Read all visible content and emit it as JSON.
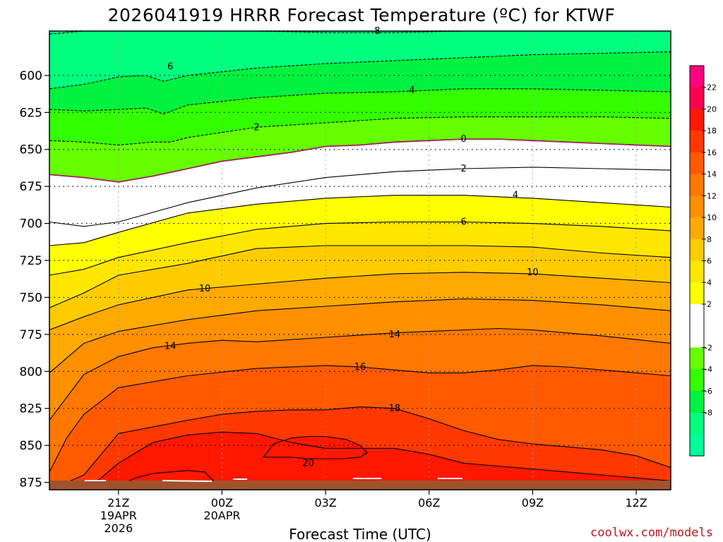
{
  "chart_data": {
    "type": "heatmap",
    "title": "2026041919 HRRR Forecast Temperature (ºC) for KTWF",
    "xlabel": "Forecast Time (UTC)",
    "ylabel": "",
    "credit": "coolwx.com/models",
    "y_axis": {
      "type": "pressure (mb)",
      "inverted": true,
      "range": [
        570,
        880
      ],
      "ticks": [
        "600",
        "625",
        "650",
        "675",
        "700",
        "725",
        "750",
        "775",
        "800",
        "825",
        "850",
        "875"
      ]
    },
    "x_axis": {
      "range_hours": [
        -2,
        16
      ],
      "range_label": "19 UTC 19 Apr 2026 to 13 UTC 20 Apr 2026",
      "ticks": [
        {
          "label": "21Z",
          "sub": [
            "19APR",
            "2026"
          ]
        },
        {
          "label": "00Z",
          "sub": [
            "20APR"
          ]
        },
        {
          "label": "03Z",
          "sub": []
        },
        {
          "label": "06Z",
          "sub": []
        },
        {
          "label": "09Z",
          "sub": []
        },
        {
          "label": "12Z",
          "sub": []
        }
      ]
    },
    "colorbar": {
      "levels": [
        -10,
        -8,
        -6,
        -4,
        -2,
        0,
        2,
        4,
        6,
        8,
        10,
        12,
        14,
        16,
        18,
        20,
        22,
        24
      ],
      "labels": [
        "22",
        "20",
        "18",
        "16",
        "14",
        "12",
        "10",
        "8",
        "6",
        "4",
        "2",
        "-2",
        "-4",
        "-6",
        "-8"
      ],
      "colors": [
        "#00ff99",
        "#00ff7f",
        "#00f240",
        "#33ff00",
        "#66ff00",
        "#ffffff",
        "#ffffff",
        "#ffff00",
        "#ffe600",
        "#ffcc00",
        "#ffaa00",
        "#ff9000",
        "#ff7800",
        "#ff5a00",
        "#ff3800",
        "#ff1800",
        "#ff004f",
        "#ff0080"
      ]
    },
    "contour_labels": [
      "8",
      "6",
      "4",
      "2",
      "0",
      "2",
      "4",
      "6",
      "10",
      "10",
      "14",
      "14",
      "16",
      "18",
      "20"
    ],
    "series": [
      {
        "name": "-8",
        "x": [
          -2,
          -1,
          0,
          2,
          4,
          6,
          8,
          10,
          12,
          14,
          16
        ],
        "p": [
          572,
          570,
          568,
          568,
          570,
          571,
          571,
          570,
          568,
          566,
          565
        ]
      },
      {
        "name": "-6",
        "x": [
          -2,
          -1,
          0,
          0.8,
          1.3,
          2,
          4,
          6,
          8,
          10,
          12,
          14,
          16
        ],
        "p": [
          609,
          606,
          601,
          600,
          604,
          600,
          595,
          592,
          590,
          588,
          586,
          585,
          584
        ]
      },
      {
        "name": "-4",
        "x": [
          -2,
          -1,
          0,
          0.8,
          1.3,
          2,
          4,
          6,
          8,
          10,
          12,
          14,
          16
        ],
        "p": [
          623,
          624,
          623,
          622,
          626,
          620,
          615,
          612,
          611,
          609,
          609,
          610,
          611
        ]
      },
      {
        "name": "-2",
        "x": [
          -2,
          -1,
          0,
          1,
          1.5,
          2,
          4,
          6,
          8,
          10,
          12,
          14,
          16
        ],
        "p": [
          644,
          645,
          647,
          645,
          645,
          642,
          635,
          632,
          629,
          628,
          628,
          628,
          629
        ]
      },
      {
        "name": "0",
        "x": [
          -2,
          -1,
          0,
          1,
          2,
          3,
          4,
          5,
          6,
          7,
          8,
          9,
          10,
          11,
          12,
          13,
          14,
          16
        ],
        "p": [
          667,
          669,
          672,
          668,
          663,
          658,
          655,
          652,
          648,
          647,
          645,
          644,
          643,
          643,
          644,
          645,
          646,
          648
        ]
      },
      {
        "name": "2",
        "x": [
          -2,
          -1,
          0,
          2,
          4,
          6,
          8,
          10,
          12,
          14,
          16
        ],
        "p": [
          699,
          702,
          699,
          686,
          676,
          669,
          665,
          663,
          662,
          663,
          664
        ]
      },
      {
        "name": "4",
        "x": [
          -2,
          -1,
          0,
          2,
          4,
          6,
          8,
          10,
          12,
          14,
          16
        ],
        "p": [
          715,
          713,
          706,
          693,
          687,
          683,
          681,
          681,
          683,
          686,
          689
        ]
      },
      {
        "name": "6",
        "x": [
          -2,
          -1,
          0,
          2,
          4,
          6,
          8,
          10,
          12,
          14,
          16
        ],
        "p": [
          735,
          731,
          723,
          713,
          704,
          700,
          699,
          699,
          700,
          702,
          705
        ]
      },
      {
        "name": "8",
        "x": [
          -2,
          -1,
          0,
          2,
          4,
          6,
          8,
          10,
          12,
          14,
          16
        ],
        "p": [
          757,
          747,
          735,
          727,
          717,
          715,
          715,
          715,
          716,
          720,
          723
        ]
      },
      {
        "name": "10",
        "x": [
          -2,
          -1,
          0,
          2,
          4,
          6,
          8,
          10,
          12,
          14,
          16
        ],
        "p": [
          772,
          763,
          755,
          745,
          741,
          737,
          734,
          733,
          734,
          737,
          740
        ]
      },
      {
        "name": "12",
        "x": [
          -2,
          -1,
          0,
          2,
          4,
          6,
          8,
          10,
          12,
          14,
          16
        ],
        "p": [
          801,
          781,
          773,
          765,
          759,
          756,
          753,
          751,
          752,
          755,
          759
        ]
      },
      {
        "name": "14",
        "x": [
          -2,
          -1,
          0,
          1,
          2,
          3,
          4,
          6,
          8,
          9,
          10,
          11,
          12,
          14,
          16
        ],
        "p": [
          833,
          802,
          790,
          784,
          781,
          779,
          780,
          777,
          774,
          773,
          772,
          771,
          772,
          776,
          781
        ]
      },
      {
        "name": "16",
        "x": [
          -2,
          -1.5,
          -1,
          0,
          2,
          4,
          6,
          7,
          8,
          9,
          10,
          11,
          12,
          13,
          14,
          16
        ],
        "p": [
          868,
          845,
          829,
          811,
          803,
          798,
          796,
          797,
          799,
          801,
          801,
          799,
          796,
          797,
          799,
          803
        ]
      },
      {
        "name": "18",
        "x": [
          -2,
          -1.5,
          -1,
          -0.5,
          0,
          2,
          3,
          4,
          5,
          6,
          7,
          8,
          9,
          10,
          11,
          12,
          13,
          14,
          15,
          16
        ],
        "p": [
          880,
          875,
          870,
          856,
          842,
          833,
          829,
          827,
          826,
          826,
          824,
          825,
          832,
          840,
          846,
          849,
          851,
          853,
          857,
          865
        ]
      },
      {
        "name": "20-west",
        "x": [
          -2,
          -1.5,
          -1,
          -0.5,
          0,
          1,
          2,
          3,
          4,
          5,
          6,
          7,
          8,
          9,
          10,
          11,
          12,
          13,
          14,
          15,
          16
        ],
        "p": [
          880,
          880,
          880,
          872,
          862,
          848,
          843,
          841,
          842,
          848,
          852,
          852,
          852,
          856,
          862,
          864,
          866,
          868,
          870,
          872,
          874
        ]
      },
      {
        "name": "20-east",
        "x": [
          4.2,
          4.5,
          5,
          5.5,
          6,
          6.6,
          7,
          7.2,
          7,
          6.5,
          6,
          5.5,
          5,
          4.5,
          4.2
        ],
        "p": [
          858,
          849,
          845,
          844,
          844,
          846,
          850,
          855,
          858,
          859,
          859,
          859,
          858,
          858,
          858
        ]
      },
      {
        "name": "22",
        "x": [
          -0.5,
          0,
          0.5,
          1,
          1.5,
          2,
          2.5,
          2.8
        ],
        "p": [
          880,
          877,
          872,
          869,
          868,
          867,
          868,
          875
        ]
      }
    ]
  }
}
